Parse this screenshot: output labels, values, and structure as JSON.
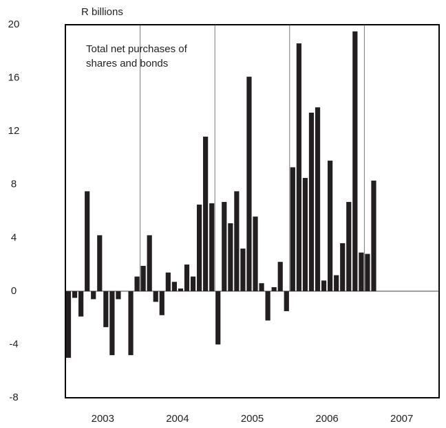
{
  "chart_data": {
    "type": "bar",
    "y_axis_label": "R billions",
    "annotation": "Total net purchases of\nshares and bonds",
    "x_labels": [
      "2003",
      "2004",
      "2005",
      "2006",
      "2007"
    ],
    "months_per_label": 12,
    "values": [
      -5.0,
      -0.5,
      -1.9,
      7.5,
      -0.6,
      4.2,
      -2.7,
      -4.8,
      -0.6,
      0,
      -4.8,
      1.1,
      1.9,
      4.2,
      -0.8,
      -1.8,
      1.4,
      0.7,
      0.2,
      2.0,
      1.1,
      6.5,
      11.6,
      6.6,
      -4.0,
      6.7,
      5.1,
      7.5,
      3.2,
      16.1,
      5.6,
      0.6,
      -2.2,
      0.3,
      2.2,
      -1.5,
      9.3,
      18.6,
      8.5,
      13.4,
      13.8,
      0.8,
      9.8,
      1.2,
      3.6,
      6.7,
      19.5,
      2.9,
      2.8,
      8.3
    ],
    "color": "#231f20",
    "ylim": [
      -8,
      20
    ],
    "yticks": [
      -8,
      -4,
      0,
      4,
      8,
      12,
      16,
      20
    ]
  }
}
